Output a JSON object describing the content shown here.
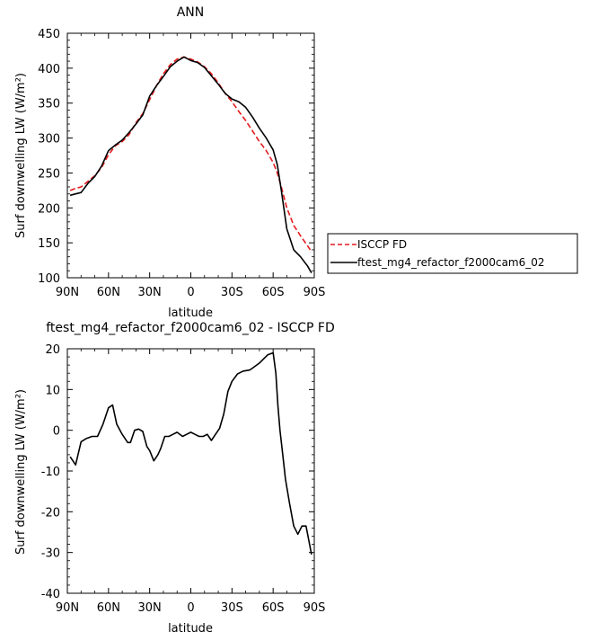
{
  "chart_data": [
    {
      "type": "line",
      "title": "ANN",
      "xlabel": "latitude",
      "ylabel": "Surf downwelling LW (W/m²)",
      "xlim": [
        90,
        -90
      ],
      "ylim": [
        100,
        450
      ],
      "yticks": [
        100,
        150,
        200,
        250,
        300,
        350,
        400,
        450
      ],
      "xticks": [
        90,
        60,
        30,
        0,
        -30,
        -60,
        -90
      ],
      "xtick_labels": [
        "90N",
        "60N",
        "30N",
        "0",
        "30S",
        "60S",
        "90S"
      ],
      "legend": "right",
      "series": [
        {
          "name": "ISCCP FD",
          "color": "#e41a1c",
          "style": "dashed",
          "x": [
            88,
            84,
            80,
            75,
            70,
            65,
            60,
            55,
            50,
            45,
            40,
            35,
            30,
            25,
            20,
            15,
            10,
            5,
            0,
            -5,
            -10,
            -15,
            -20,
            -25,
            -30,
            -35,
            -40,
            -45,
            -50,
            -55,
            -60,
            -63,
            -66,
            -70,
            -75,
            -80,
            -85,
            -88
          ],
          "y": [
            225,
            228,
            230,
            238,
            246,
            258,
            276,
            289,
            295,
            305,
            322,
            335,
            355,
            375,
            392,
            405,
            413,
            416,
            413,
            409,
            402,
            392,
            379,
            364,
            352,
            338,
            325,
            310,
            295,
            282,
            265,
            250,
            230,
            200,
            175,
            160,
            146,
            137
          ]
        },
        {
          "name": "ftest_mg4_refactor_f2000cam6_02",
          "color": "#000000",
          "style": "solid",
          "x": [
            88,
            84,
            80,
            75,
            70,
            65,
            60,
            55,
            50,
            45,
            40,
            35,
            30,
            25,
            20,
            15,
            10,
            5,
            0,
            -5,
            -10,
            -15,
            -20,
            -25,
            -30,
            -35,
            -40,
            -45,
            -50,
            -55,
            -60,
            -63,
            -66,
            -70,
            -75,
            -80,
            -85,
            -88
          ],
          "y": [
            218,
            220,
            222,
            235,
            245,
            260,
            282,
            290,
            297,
            308,
            320,
            333,
            360,
            375,
            388,
            402,
            410,
            416,
            411,
            408,
            401,
            389,
            377,
            364,
            356,
            352,
            344,
            330,
            314,
            300,
            283,
            262,
            225,
            170,
            140,
            130,
            117,
            107
          ]
        }
      ]
    },
    {
      "type": "line",
      "title": "ftest_mg4_refactor_f2000cam6_02 - ISCCP FD",
      "xlabel": "latitude",
      "ylabel": "Surf downwelling LW (W/m²)",
      "xlim": [
        90,
        -90
      ],
      "ylim": [
        -40,
        20
      ],
      "yticks": [
        -40,
        -30,
        -20,
        -10,
        0,
        10,
        20
      ],
      "xticks": [
        90,
        60,
        30,
        0,
        -30,
        -60,
        -90
      ],
      "xtick_labels": [
        "90N",
        "60N",
        "30N",
        "0",
        "30S",
        "60S",
        "90S"
      ],
      "series": [
        {
          "color": "#000000",
          "style": "solid",
          "x": [
            88,
            84,
            80,
            76,
            72,
            68,
            64,
            60,
            57,
            54,
            50,
            46,
            44,
            41,
            38,
            35,
            32,
            30,
            27,
            24,
            22,
            19,
            16,
            13,
            10,
            6,
            3,
            0,
            -3,
            -6,
            -9,
            -12,
            -15,
            -18,
            -21,
            -24,
            -27,
            -30,
            -34,
            -38,
            -43,
            -46,
            -50,
            -53,
            -56,
            -60,
            -62,
            -63.5,
            -65,
            -67,
            -69,
            -72,
            -75,
            -78,
            -81,
            -84,
            -86,
            -88
          ],
          "y": [
            -6.5,
            -8.5,
            -2.8,
            -2.0,
            -1.5,
            -1.5,
            1.5,
            5.5,
            6.2,
            1.5,
            -1.0,
            -3.0,
            -3.0,
            0.0,
            0.3,
            -0.3,
            -4.0,
            -5.0,
            -7.5,
            -6.0,
            -4.5,
            -1.5,
            -1.5,
            -1.0,
            -0.5,
            -1.5,
            -1.0,
            -0.5,
            -1.0,
            -1.5,
            -1.5,
            -1.0,
            -2.5,
            -1.0,
            0.5,
            4.0,
            9.5,
            12.0,
            13.8,
            14.5,
            14.8,
            15.5,
            16.5,
            17.5,
            18.5,
            19.0,
            14.0,
            6.0,
            0.0,
            -6.0,
            -12.0,
            -18.0,
            -23.5,
            -25.5,
            -23.5,
            -23.5,
            -27.0,
            -30.5
          ]
        }
      ]
    }
  ]
}
